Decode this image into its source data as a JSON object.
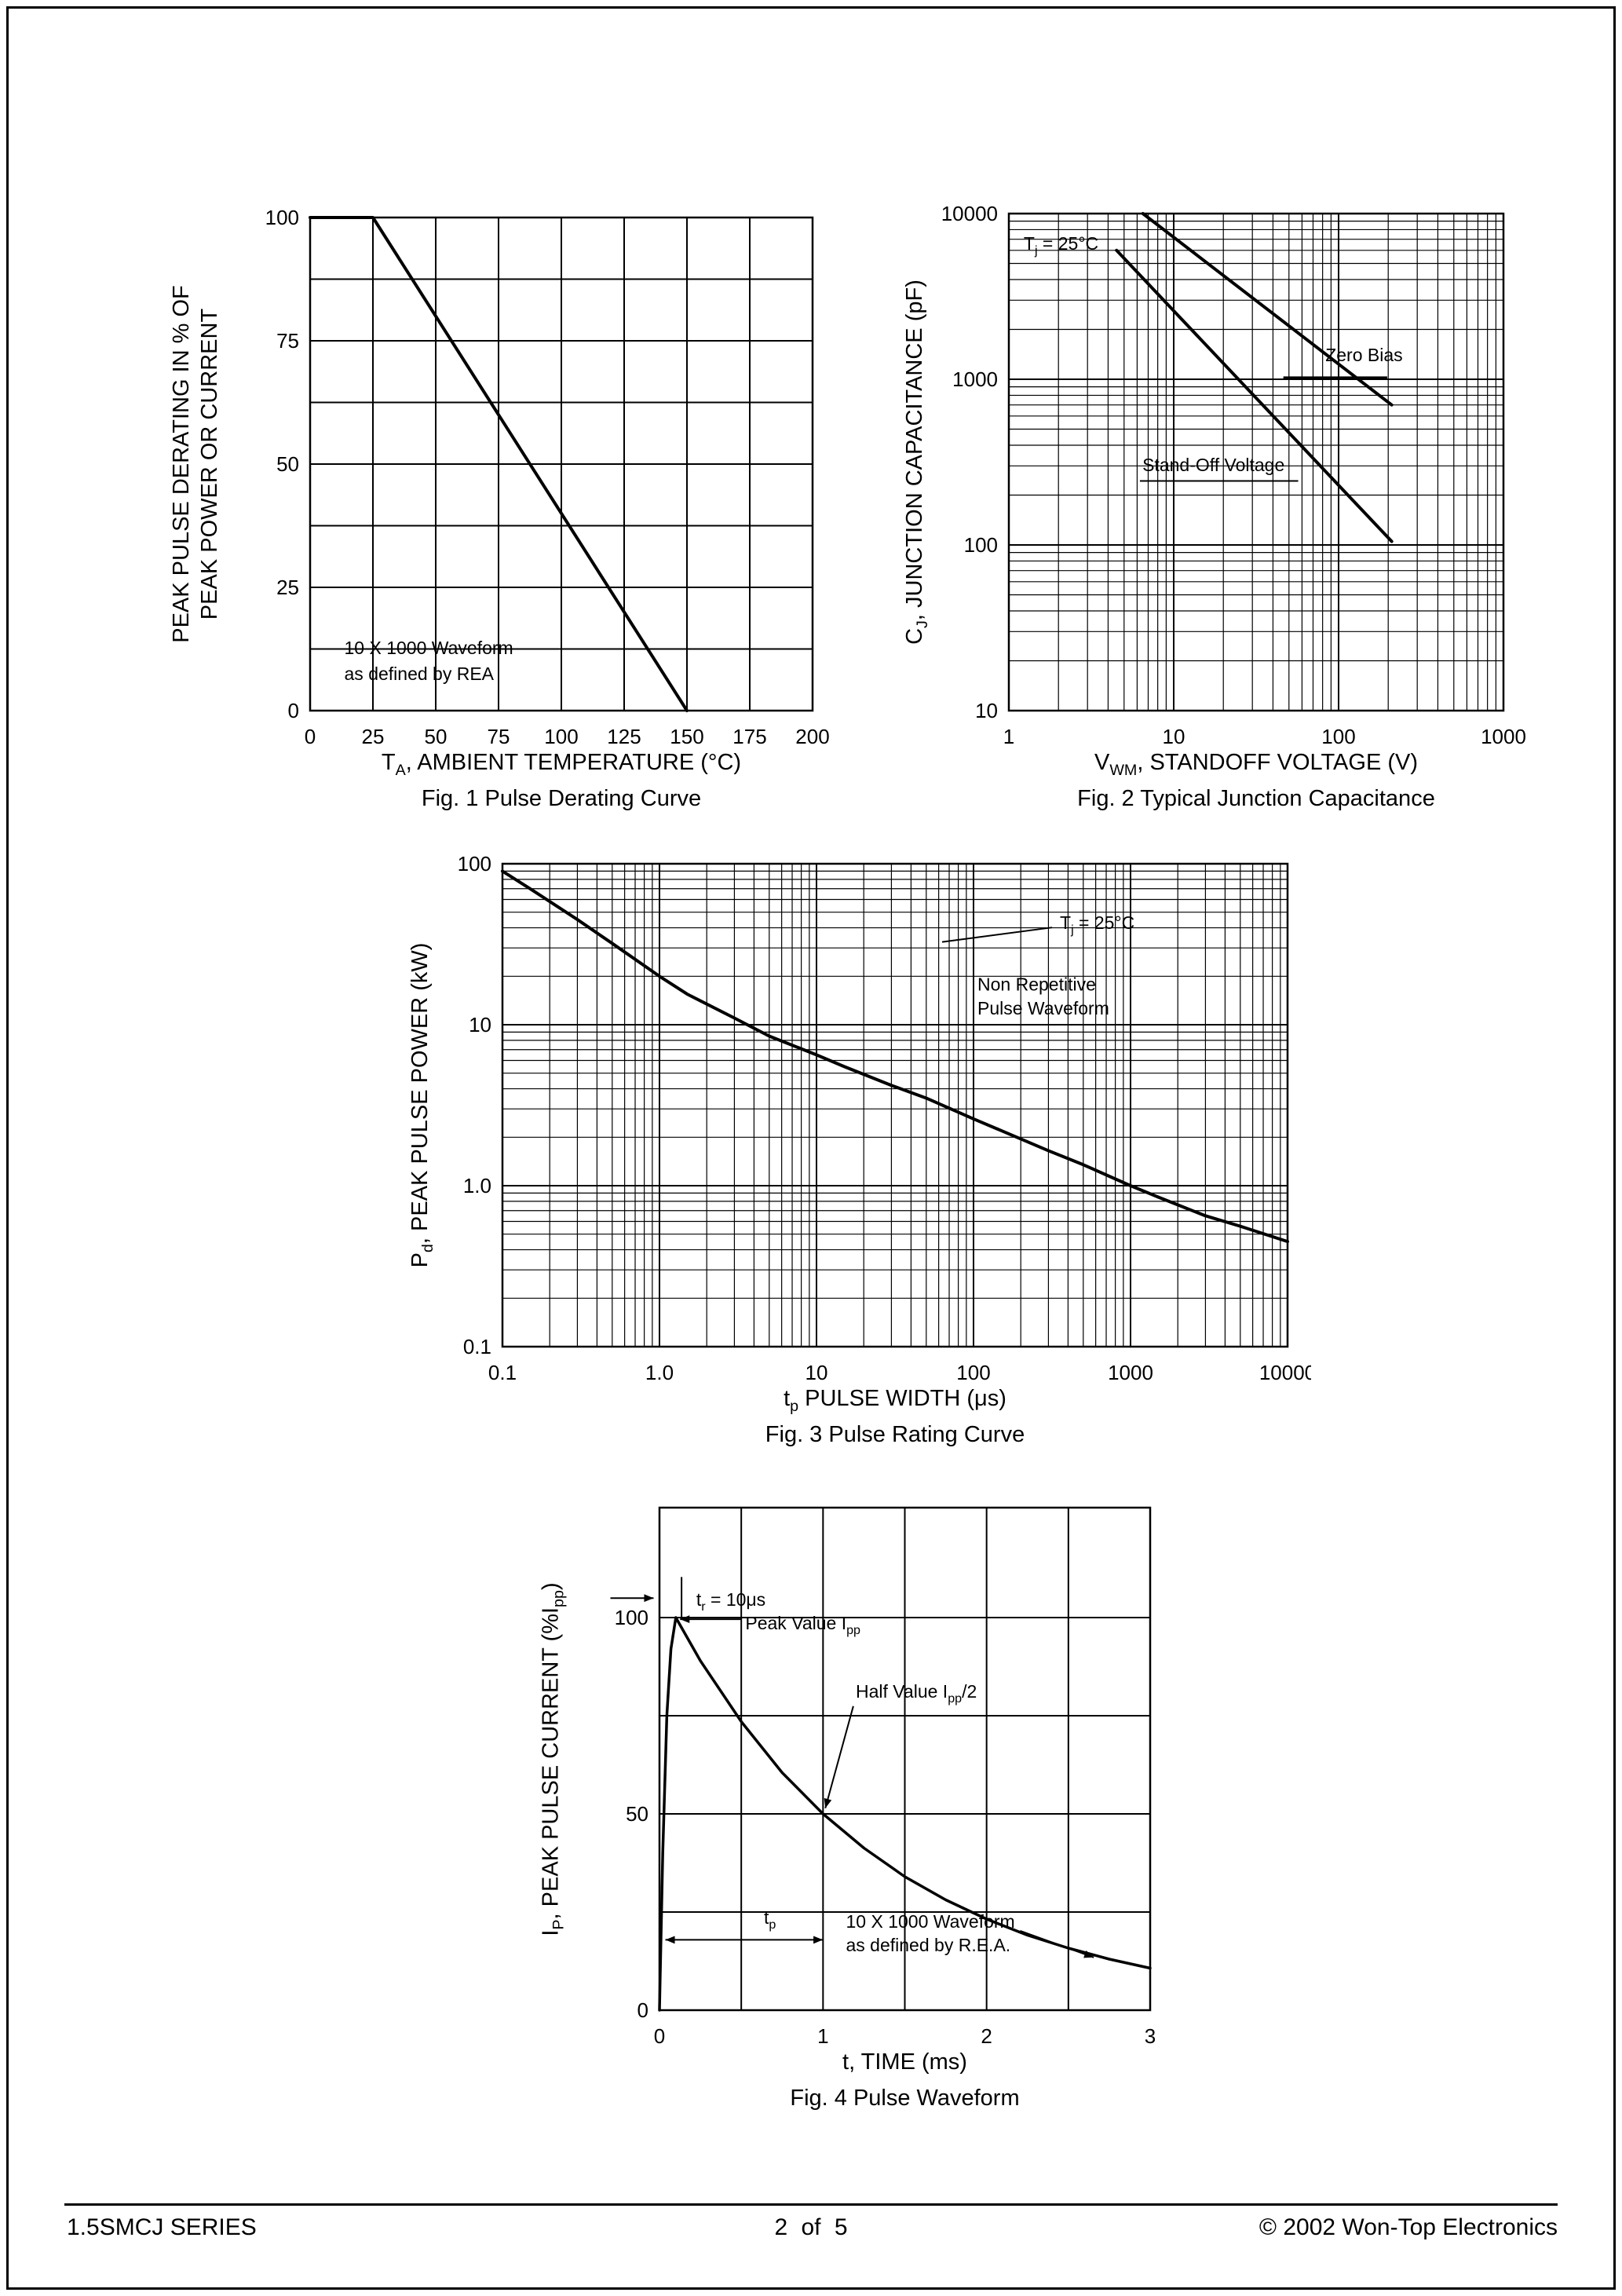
{
  "page": {
    "footer": {
      "series": "1.5SMCJ SERIES",
      "page": "2 of 5",
      "copyright": "© 2002 Won-Top Electronics"
    }
  },
  "chart_data": [
    {
      "id": "fig1",
      "type": "line",
      "title": "Fig. 1 Pulse Derating Curve",
      "xlabel": "T_{A}, AMBIENT TEMPERATURE (°C)",
      "ylabel": "PEAK PULSE DERATING IN % OF\nPEAK POWER OR CURRENT",
      "x": {
        "scale": "linear",
        "min": 0,
        "max": 200,
        "grid": 25,
        "ticks": [
          [
            0,
            "0"
          ],
          [
            25,
            "25"
          ],
          [
            50,
            "50"
          ],
          [
            75,
            "75"
          ],
          [
            100,
            "100"
          ],
          [
            125,
            "125"
          ],
          [
            150,
            "150"
          ],
          [
            175,
            "175"
          ],
          [
            200,
            "200"
          ]
        ]
      },
      "y": {
        "scale": "linear",
        "min": 0,
        "max": 100,
        "grid": 12.5,
        "ticks": [
          [
            0,
            "0"
          ],
          [
            25,
            "25"
          ],
          [
            50,
            "50"
          ],
          [
            75,
            "75"
          ],
          [
            100,
            "100"
          ]
        ]
      },
      "series": [
        {
          "name": "derating-line",
          "w": 4,
          "points": [
            [
              0,
              100
            ],
            [
              25,
              100
            ],
            [
              150,
              0
            ]
          ]
        }
      ],
      "annotations": [
        {
          "name": "waveform-note-line1",
          "t": "10 X 1000 Waveform",
          "fx": 0.068,
          "fy": 0.115
        },
        {
          "name": "waveform-note-line2",
          "t": "as defined by REA",
          "fx": 0.068,
          "fy": 0.062
        }
      ],
      "lines": []
    },
    {
      "id": "fig2",
      "type": "line",
      "title": "Fig. 2 Typical Junction Capacitance",
      "xlabel": "V_{WM}, STANDOFF VOLTAGE (V)",
      "ylabel": "C_{J}, JUNCTION CAPACITANCE (pF)",
      "x": {
        "scale": "log",
        "min": 1,
        "max": 1000,
        "ticks": [
          [
            1,
            "1"
          ],
          [
            10,
            "10"
          ],
          [
            100,
            "100"
          ],
          [
            1000,
            "1000"
          ]
        ]
      },
      "y": {
        "scale": "log",
        "min": 10,
        "max": 10000,
        "ticks": [
          [
            10,
            "10"
          ],
          [
            100,
            "100"
          ],
          [
            1000,
            "1000"
          ],
          [
            10000,
            "10000"
          ]
        ]
      },
      "series": [
        {
          "name": "zero-bias-curve",
          "w": 4,
          "points": [
            [
              6.5,
              10000
            ],
            [
              210,
              700
            ]
          ]
        },
        {
          "name": "standoff-voltage-curve",
          "w": 4,
          "points": [
            [
              4.5,
              6000
            ],
            [
              210,
              105
            ]
          ]
        }
      ],
      "annotations": [
        {
          "name": "tj-note",
          "t": "T_{j} = 25°C",
          "fx": 0.03,
          "fy": 0.927
        },
        {
          "name": "zero-bias-label",
          "t": "Zero Bias",
          "fx": 0.64,
          "fy": 0.703
        },
        {
          "name": "standoff-label",
          "t": "Stand-Off Voltage",
          "fx": 0.27,
          "fy": 0.482
        }
      ],
      "lines": [
        {
          "x1": 0.555,
          "y1": 0.67,
          "x2": 0.765,
          "y2": 0.67,
          "w": 3
        },
        {
          "x1": 0.265,
          "y1": 0.462,
          "x2": 0.585,
          "y2": 0.462,
          "w": 2
        }
      ]
    },
    {
      "id": "fig3",
      "type": "line",
      "title": "Fig. 3 Pulse Rating Curve",
      "xlabel": "t_{p} PULSE WIDTH (μs)",
      "ylabel": "P_{d}, PEAK PULSE POWER (kW)",
      "x": {
        "scale": "log",
        "min": 0.1,
        "max": 10000,
        "ticks": [
          [
            0.1,
            "0.1"
          ],
          [
            1,
            "1.0"
          ],
          [
            10,
            "10"
          ],
          [
            100,
            "100"
          ],
          [
            1000,
            "1000"
          ],
          [
            10000,
            "10000"
          ]
        ]
      },
      "y": {
        "scale": "log",
        "min": 0.1,
        "max": 100,
        "ticks": [
          [
            0.1,
            "0.1"
          ],
          [
            1,
            "1.0"
          ],
          [
            10,
            "10"
          ],
          [
            100,
            "100"
          ]
        ]
      },
      "series": [
        {
          "name": "pulse-rating-curve",
          "w": 4,
          "points": [
            [
              0.1,
              90
            ],
            [
              0.15,
              70
            ],
            [
              0.3,
              45
            ],
            [
              0.5,
              32
            ],
            [
              1,
              20
            ],
            [
              1.5,
              15.5
            ],
            [
              3,
              11
            ],
            [
              5,
              8.5
            ],
            [
              10,
              6.5
            ],
            [
              15,
              5.5
            ],
            [
              30,
              4.2
            ],
            [
              50,
              3.5
            ],
            [
              100,
              2.6
            ],
            [
              150,
              2.2
            ],
            [
              300,
              1.65
            ],
            [
              500,
              1.35
            ],
            [
              1000,
              1.0
            ],
            [
              1500,
              0.85
            ],
            [
              3000,
              0.65
            ],
            [
              5000,
              0.56
            ],
            [
              10000,
              0.45
            ]
          ]
        }
      ],
      "annotations": [
        {
          "name": "tj-note",
          "t": "T_{j} = 25°C",
          "fx": 0.71,
          "fy": 0.865
        },
        {
          "name": "nonrep-line1",
          "t": "Non Repetitive",
          "fx": 0.605,
          "fy": 0.737
        },
        {
          "name": "nonrep-line2",
          "t": "Pulse Waveform",
          "fx": 0.605,
          "fy": 0.688
        }
      ],
      "lines": [
        {
          "x1": 0.56,
          "y1": 0.838,
          "x2": 0.7,
          "y2": 0.868,
          "w": 2
        }
      ]
    },
    {
      "id": "fig4",
      "type": "line",
      "title": "Fig. 4 Pulse Waveform",
      "xlabel": "t, TIME (ms)",
      "ylabel": "I_{P}, PEAK PULSE CURRENT (%I_{pp})",
      "x": {
        "scale": "linear",
        "min": 0,
        "max": 3,
        "grid": 0.5,
        "ticks": [
          [
            0,
            "0"
          ],
          [
            1,
            "1"
          ],
          [
            2,
            "2"
          ],
          [
            3,
            "3"
          ]
        ]
      },
      "y": {
        "scale": "linear",
        "min": 0,
        "max": 128,
        "grid": 25,
        "gridMax": 100,
        "ticks": [
          [
            0,
            "0"
          ],
          [
            50,
            "50"
          ],
          [
            100,
            "100"
          ]
        ]
      },
      "series": [
        {
          "name": "pulse-waveform-curve",
          "w": 3.5,
          "points": [
            [
              0,
              0
            ],
            [
              0.02,
              40
            ],
            [
              0.045,
              75
            ],
            [
              0.07,
              92
            ],
            [
              0.1,
              100
            ],
            [
              0.25,
              89
            ],
            [
              0.5,
              73.5
            ],
            [
              0.75,
              60.5
            ],
            [
              1,
              50
            ],
            [
              1.25,
              41.3
            ],
            [
              1.5,
              34
            ],
            [
              1.75,
              28.1
            ],
            [
              2,
              23.2
            ],
            [
              2.25,
              19.1
            ],
            [
              2.5,
              15.8
            ],
            [
              2.75,
              13
            ],
            [
              3,
              10.7
            ]
          ]
        }
      ],
      "annotations": [
        {
          "name": "tr-note",
          "t": "t_{r} = 10μs",
          "fx": 0.075,
          "fy": 0.805
        },
        {
          "name": "peak-value-label",
          "t": "Peak Value I_{pp}",
          "fx": 0.175,
          "fy": 0.758
        },
        {
          "name": "half-value-label",
          "t": "Half Value I_{pp}/2",
          "fx": 0.4,
          "fy": 0.622
        },
        {
          "name": "tp-label",
          "t": "t_{p}",
          "fx": 0.225,
          "fy": 0.172,
          "anchor": "middle"
        },
        {
          "name": "rea-note-line1",
          "t": "10 X 1000 Waveform",
          "fx": 0.38,
          "fy": 0.164
        },
        {
          "name": "rea-note-line2",
          "t": "as defined by R.E.A.",
          "fx": 0.38,
          "fy": 0.117
        }
      ],
      "lines": [
        {
          "x1": -0.1,
          "y1": 0.82,
          "x2": -0.012,
          "y2": 0.82,
          "arrow": "end",
          "w": 2
        },
        {
          "x1": 0.045,
          "y1": 0.778,
          "x2": 0.045,
          "y2": 0.862,
          "w": 2
        },
        {
          "x1": 0.168,
          "y1": 0.778,
          "x2": 0.042,
          "y2": 0.778,
          "arrow": "end",
          "w": 2
        },
        {
          "x1": 0.395,
          "y1": 0.605,
          "x2": 0.338,
          "y2": 0.402,
          "arrow": "end",
          "w": 2
        },
        {
          "x1": 0.012,
          "y1": 0.14,
          "x2": 0.333,
          "y2": 0.14,
          "arrow": "both",
          "w": 2
        },
        {
          "x1": 0.735,
          "y1": 0.158,
          "x2": 0.885,
          "y2": 0.105,
          "arrow": "end",
          "w": 2
        }
      ]
    }
  ]
}
